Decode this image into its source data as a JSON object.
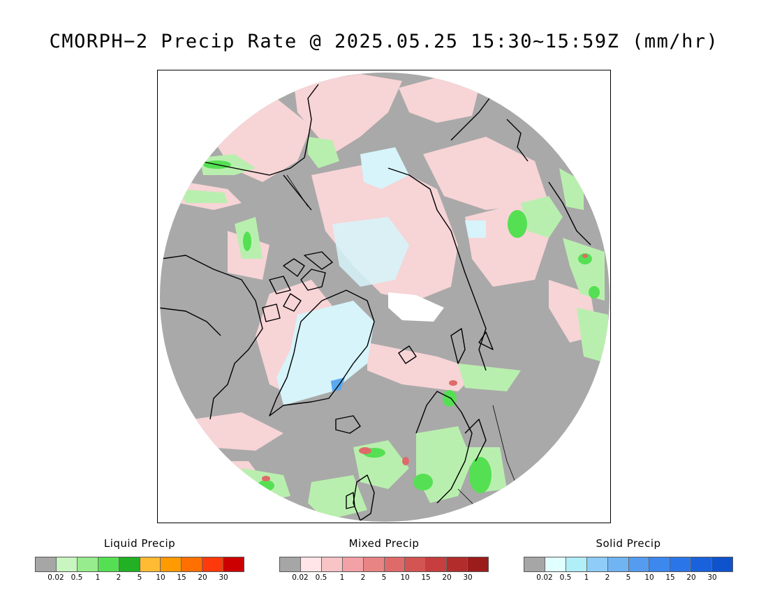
{
  "title": "CMORPH−2 Precip Rate @ 2025.05.25 15:30~15:59Z (mm/hr)",
  "map": {
    "projection": "north-polar-stereographic",
    "background_no_precip_color": "#a9a9a9",
    "coastline_color": "#000000"
  },
  "legends": [
    {
      "caption": "Liquid Precip",
      "colors": [
        "#a6a6a6",
        "#c8f5c0",
        "#97ec8d",
        "#55e054",
        "#22b024",
        "#ffbb33",
        "#ff9a00",
        "#ff7000",
        "#ff3a0a",
        "#cc0000"
      ],
      "ticks": [
        "0.02",
        "0.5",
        "1",
        "2",
        "5",
        "10",
        "15",
        "20",
        "30"
      ]
    },
    {
      "caption": "Mixed Precip",
      "colors": [
        "#a6a6a6",
        "#ffe5e8",
        "#f8c4c6",
        "#f2a2a6",
        "#e88484",
        "#df6a6a",
        "#d45454",
        "#c63e3e",
        "#b22c2c",
        "#9c1c1c"
      ],
      "ticks": [
        "0.02",
        "0.5",
        "1",
        "2",
        "5",
        "10",
        "15",
        "20",
        "30"
      ]
    },
    {
      "caption": "Solid Precip",
      "colors": [
        "#a6a6a6",
        "#e0ffff",
        "#b0eef8",
        "#90ccf8",
        "#70b4f4",
        "#559cf0",
        "#3d88ec",
        "#2a76e8",
        "#1a62dc",
        "#0e52cc"
      ],
      "ticks": [
        "0.02",
        "0.5",
        "1",
        "2",
        "5",
        "10",
        "15",
        "20",
        "30"
      ]
    }
  ]
}
